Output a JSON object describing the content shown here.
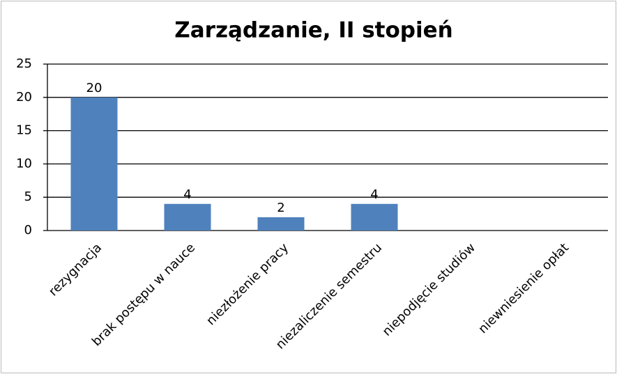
{
  "chart_data": {
    "type": "bar",
    "title": "Zarządzanie, II stopień",
    "categories": [
      "rezygnacja",
      "brak postępu w nauce",
      "niezłożenie pracy",
      "niezaliczenie semestru",
      "niepodjęcie studiów",
      "niewniesienie opłat"
    ],
    "values": [
      20,
      4,
      2,
      4,
      0,
      0
    ],
    "color": "#4f81bd",
    "ylim": [
      0,
      25
    ],
    "yticks": [
      0,
      5,
      10,
      15,
      20,
      25
    ],
    "grid": true
  }
}
